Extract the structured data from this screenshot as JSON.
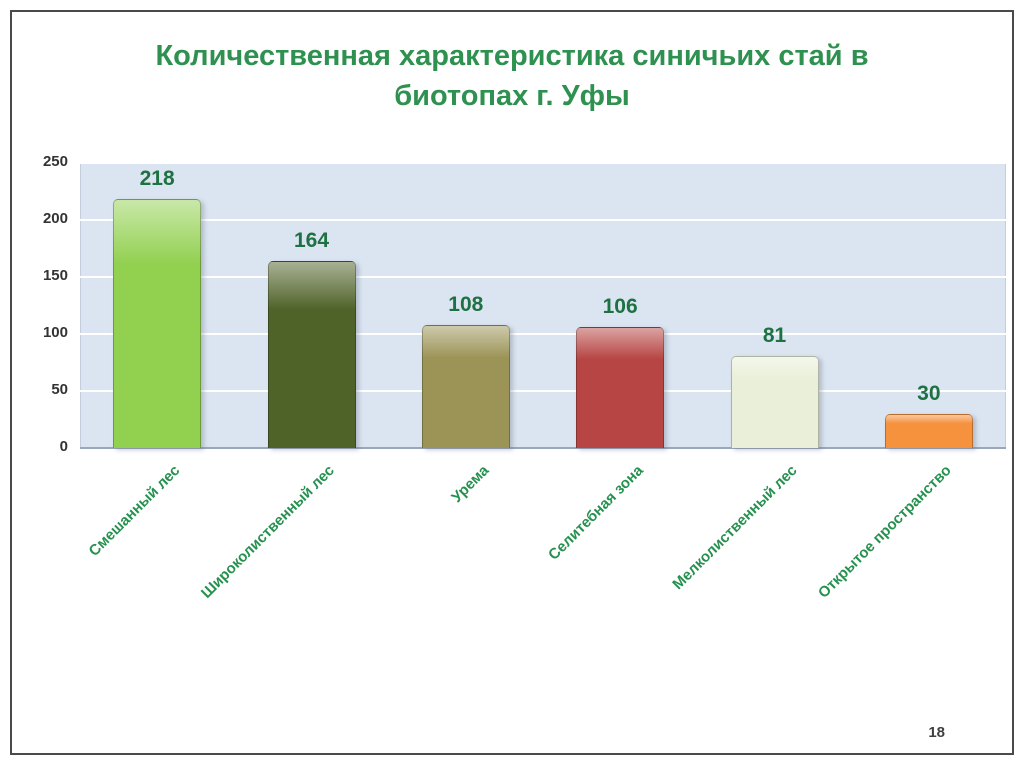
{
  "slide": {
    "page_number": "18"
  },
  "chart_data": {
    "type": "bar",
    "title": "Количественная характеристика синичьих стай в биотопах г. Уфы",
    "title_lines": [
      "Количественная характеристика синичьих стай в",
      "биотопах г. Уфы"
    ],
    "categories": [
      "Смешанный лес",
      "Широколиственный лес",
      "Урема",
      "Селитебная зона",
      "Мелколиственный лес",
      "Открытое пространство"
    ],
    "values": [
      218,
      164,
      108,
      106,
      81,
      30
    ],
    "bar_colors": [
      "#92d050",
      "#4f6228",
      "#9c9457",
      "#b64543",
      "#e9efd8",
      "#f6913d"
    ],
    "ylim": [
      0,
      250
    ],
    "yticks": [
      0,
      50,
      100,
      150,
      200,
      250
    ],
    "grid": true,
    "legend": false,
    "xlabel": "",
    "ylabel": "",
    "colors": {
      "plot_bg": "#dbe5f1",
      "gridline": "#ffffff",
      "title": "#2e9150",
      "value_label": "#1e7143",
      "category_label": "#26914f",
      "ytick_label": "#333333",
      "axis_line": "#9aa6bb"
    }
  }
}
